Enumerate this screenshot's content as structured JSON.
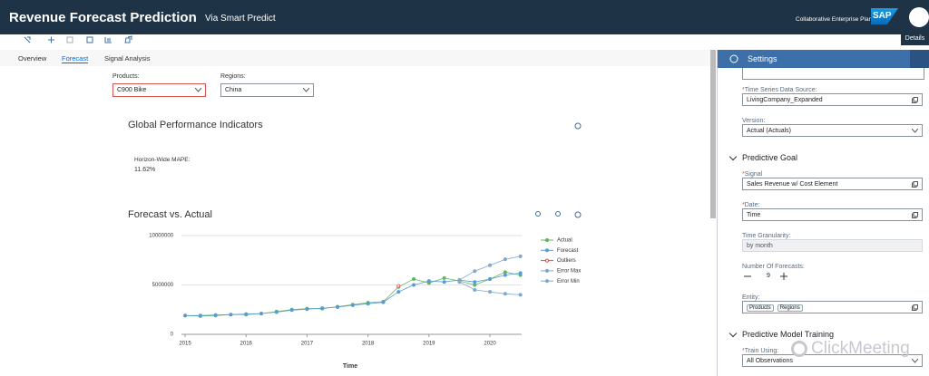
{
  "header": {
    "title": "Revenue Forecast Prediction",
    "subtitle": "Via Smart Predict",
    "app": "Collaborative Enterprise Planning",
    "logo": "SAP",
    "details": "Details"
  },
  "tabs": [
    "Overview",
    "Forecast",
    "Signal Analysis"
  ],
  "active_tab": 1,
  "filters": [
    {
      "label": "Products:",
      "value": "C900 Bike"
    },
    {
      "label": "Regions:",
      "value": "China"
    }
  ],
  "kpi": {
    "title": "Global Performance Indicators",
    "label": "Horizon-Wide MAPE:",
    "value": "11.62%"
  },
  "chart_data": {
    "type": "line",
    "title": "Forecast vs. Actual",
    "x_label": "Time",
    "x": [
      2015.0,
      2015.25,
      2015.5,
      2015.75,
      2016.0,
      2016.25,
      2016.5,
      2016.75,
      2017.0,
      2017.25,
      2017.5,
      2017.75,
      2018.0,
      2018.25,
      2018.5,
      2018.75,
      2019.0,
      2019.25,
      2019.5,
      2019.75,
      2020.0,
      2020.25,
      2020.5
    ],
    "xlim": [
      2014.94,
      2020.52
    ],
    "xticks": [
      2015,
      2016,
      2017,
      2018,
      2019,
      2020
    ],
    "ylim": [
      0,
      10000000
    ],
    "yticks": [
      0,
      5000000,
      10000000
    ],
    "grid": true,
    "series": [
      {
        "name": "Actual",
        "color": "#5cb85c",
        "marker": "filled",
        "values": [
          1900000,
          1850000,
          1900000,
          2000000,
          2000000,
          2100000,
          2300000,
          2500000,
          2600000,
          2600000,
          2800000,
          3000000,
          3200000,
          3300000,
          4800000,
          5600000,
          5200000,
          5700000,
          5400000,
          5000000,
          5600000,
          6300000,
          6000000
        ]
      },
      {
        "name": "Forecast",
        "color": "#5b9bd5",
        "marker": "filled",
        "values": [
          1900000,
          1900000,
          1950000,
          2000000,
          2050000,
          2100000,
          2250000,
          2450000,
          2550000,
          2650000,
          2750000,
          2950000,
          3100000,
          3250000,
          4300000,
          5000000,
          5400000,
          5300000,
          5500000,
          5300000,
          5600000,
          6000000,
          6200000
        ]
      },
      {
        "name": "Outliers",
        "color": "#d9534f",
        "marker": "open",
        "values": [
          null,
          null,
          null,
          null,
          null,
          null,
          null,
          null,
          null,
          null,
          null,
          null,
          null,
          null,
          4900000,
          null,
          null,
          null,
          null,
          null,
          null,
          null,
          null
        ]
      },
      {
        "name": "Error Max",
        "color": "#7fa9cc",
        "marker": "filled",
        "values": [
          null,
          null,
          null,
          null,
          null,
          null,
          null,
          null,
          null,
          null,
          null,
          null,
          null,
          null,
          null,
          null,
          null,
          null,
          5500000,
          6400000,
          7000000,
          7600000,
          7900000
        ]
      },
      {
        "name": "Error Min",
        "color": "#7fa9cc",
        "marker": "filled",
        "values": [
          null,
          null,
          null,
          null,
          null,
          null,
          null,
          null,
          null,
          null,
          null,
          null,
          null,
          null,
          null,
          null,
          null,
          null,
          5300000,
          4500000,
          4300000,
          4100000,
          4000000
        ]
      }
    ]
  },
  "settings": {
    "title": "Settings",
    "groups": [
      {
        "fields": [
          {
            "required": "*",
            "label": "Time Series Data Source:",
            "value": "LivingCompany_Expanded",
            "kind": "value-help"
          },
          {
            "label": "Version:",
            "value": "Actual (Actuals)",
            "kind": "select"
          }
        ]
      },
      {
        "title": "Predictive Goal",
        "fields": [
          {
            "required": "*",
            "label": "Signal",
            "value": "Sales Revenue w/ Cost Element",
            "kind": "value-help"
          },
          {
            "required": "*",
            "label": "Date:",
            "value": "Time",
            "kind": "value-help"
          },
          {
            "label": "Time Granularity:",
            "value": "by month",
            "kind": "disabled"
          },
          {
            "label": "Number Of Forecasts:",
            "value": 9,
            "kind": "stepper"
          },
          {
            "label": "Entity:",
            "tokens": [
              "Products",
              "Regions"
            ],
            "kind": "tokens"
          }
        ]
      },
      {
        "title": "Predictive Model Training",
        "fields": [
          {
            "required": "*",
            "label": "Train Using:",
            "value": "All Observations",
            "kind": "select"
          }
        ]
      }
    ]
  },
  "watermark": "ClickMeeting"
}
